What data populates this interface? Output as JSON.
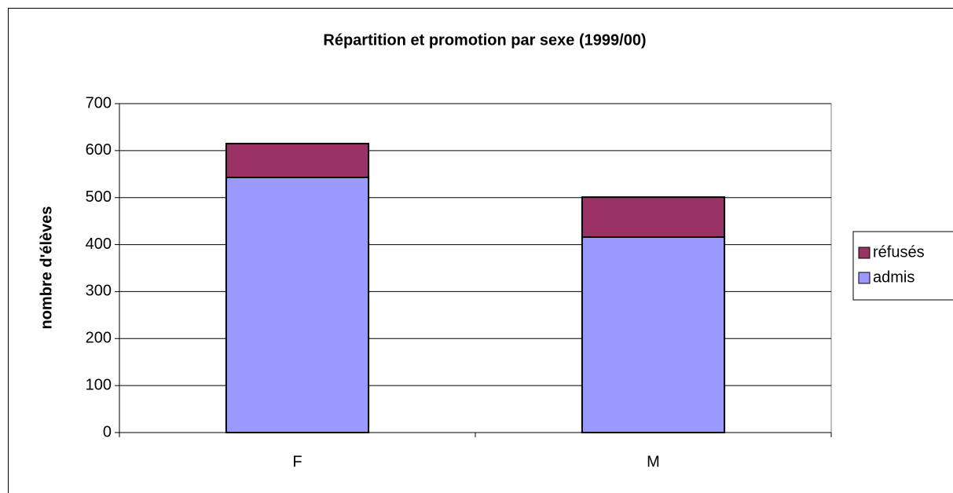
{
  "chart_data": {
    "type": "stacked_bar",
    "title": "Répartition et promotion par sexe (1999/00)",
    "y_label": "nombre d'élèves",
    "categories": [
      "F",
      "M"
    ],
    "series": [
      {
        "name": "admis",
        "color": "#9999ff",
        "values": [
          543,
          416
        ]
      },
      {
        "name": "réfusés",
        "color": "#993366",
        "values": [
          72,
          85
        ]
      }
    ],
    "ylim": [
      0,
      700
    ],
    "yticks": [
      0,
      100,
      200,
      300,
      400,
      500,
      600,
      700
    ],
    "grid": true,
    "legend": "right"
  }
}
